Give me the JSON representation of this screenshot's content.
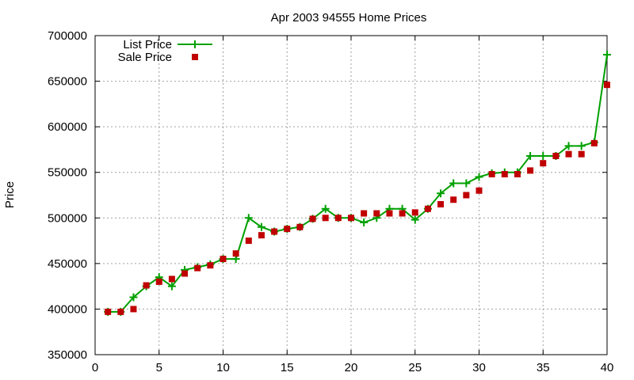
{
  "chart_data": {
    "type": "line",
    "title": "Apr 2003 94555 Home Prices",
    "xlabel": "",
    "ylabel": "Price",
    "xlim": [
      0,
      40
    ],
    "ylim": [
      350000,
      700000
    ],
    "xticks": [
      0,
      5,
      10,
      15,
      20,
      25,
      30,
      35,
      40
    ],
    "yticks": [
      350000,
      400000,
      450000,
      500000,
      550000,
      600000,
      650000,
      700000
    ],
    "grid": true,
    "legend_position": "top-left",
    "x": [
      1,
      2,
      3,
      4,
      5,
      6,
      7,
      8,
      9,
      10,
      11,
      12,
      13,
      14,
      15,
      16,
      17,
      18,
      19,
      20,
      21,
      22,
      23,
      24,
      25,
      26,
      27,
      28,
      29,
      30,
      31,
      32,
      33,
      34,
      35,
      36,
      37,
      38,
      39,
      40
    ],
    "series": [
      {
        "name": "List Price",
        "style": "line+cross",
        "color": "#00a000",
        "values": [
          397000,
          397000,
          413000,
          425000,
          435000,
          425000,
          443000,
          446000,
          449000,
          455000,
          455000,
          500000,
          490000,
          485000,
          488000,
          490000,
          499000,
          510000,
          500000,
          500000,
          495000,
          500000,
          510000,
          510000,
          498000,
          510000,
          527000,
          538000,
          538000,
          545000,
          549000,
          550000,
          550000,
          568000,
          568000,
          568000,
          579000,
          579000,
          583000,
          679000
        ]
      },
      {
        "name": "Sale Price",
        "style": "square",
        "color": "#c00000",
        "values": [
          397000,
          397000,
          400000,
          426000,
          430000,
          433000,
          439000,
          445000,
          448000,
          455000,
          461000,
          475000,
          481000,
          485000,
          488000,
          490000,
          499000,
          500000,
          500000,
          500000,
          505000,
          505000,
          505000,
          505000,
          506000,
          510000,
          515000,
          520000,
          525000,
          530000,
          548000,
          548000,
          548000,
          552000,
          560000,
          568000,
          570000,
          570000,
          582000,
          646000
        ]
      }
    ]
  }
}
